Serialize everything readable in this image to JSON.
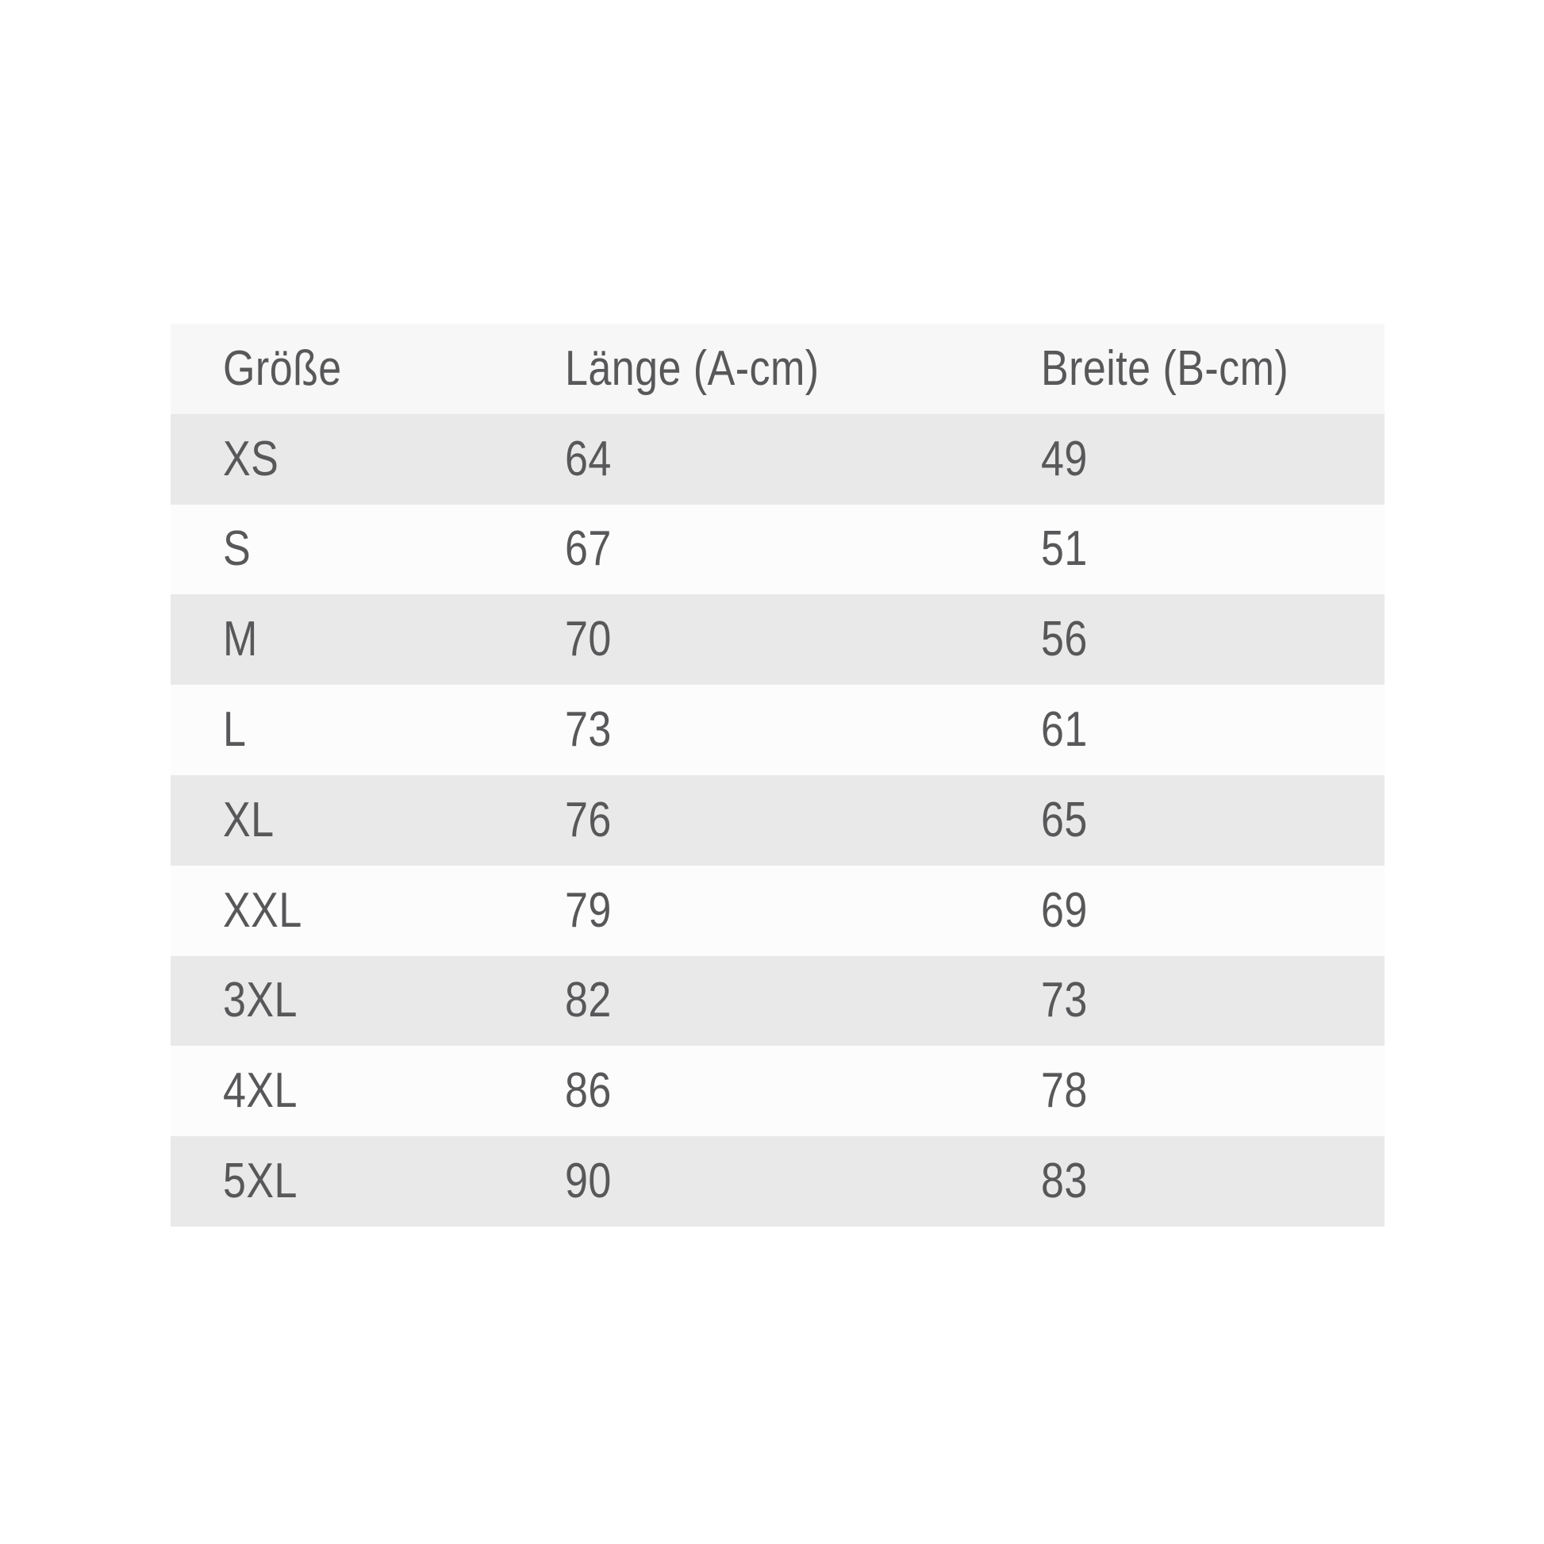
{
  "chart_data": {
    "type": "table",
    "columns": [
      "Größe",
      "Länge (A-cm)",
      "Breite (B-cm)"
    ],
    "rows": [
      [
        "XS",
        "64",
        "49"
      ],
      [
        "S",
        "67",
        "51"
      ],
      [
        "M",
        "70",
        "56"
      ],
      [
        "L",
        "73",
        "61"
      ],
      [
        "XL",
        "76",
        "65"
      ],
      [
        "XXL",
        "79",
        "69"
      ],
      [
        "3XL",
        "82",
        "73"
      ],
      [
        "4XL",
        "86",
        "78"
      ],
      [
        "5XL",
        "90",
        "83"
      ]
    ],
    "layout_hints": {
      "header_position": "top",
      "alternating_rows": true,
      "first_data_row_shaded": true,
      "grid": false
    }
  },
  "colors": {
    "page_bg": "#ffffff",
    "header_bg": "#f7f7f7",
    "row_bg": "#fcfcfc",
    "row_alt_bg": "#e9e9e9",
    "text": "#58585a"
  }
}
